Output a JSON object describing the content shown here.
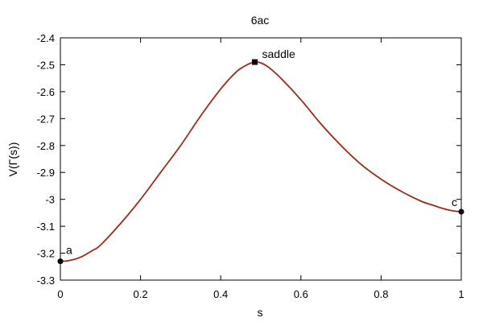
{
  "chart_data": {
    "type": "line",
    "title": "6ac",
    "xlabel": "s",
    "ylabel": "V(Γ(s))",
    "xlim": [
      0,
      1
    ],
    "ylim": [
      -3.3,
      -2.4
    ],
    "x_ticks": [
      "0",
      "0.2",
      "0.4",
      "0.6",
      "0.8",
      "1"
    ],
    "y_ticks": [
      "-2.4",
      "-2.5",
      "-2.6",
      "-2.7",
      "-2.8",
      "-2.9",
      "-3",
      "-3.1",
      "-3.2",
      "-3.3"
    ],
    "grid": false,
    "series": [
      {
        "color": "#9b2a1a",
        "x": [
          0,
          0.02,
          0.05,
          0.08,
          0.1,
          0.15,
          0.2,
          0.25,
          0.3,
          0.35,
          0.4,
          0.44,
          0.47,
          0.485,
          0.5,
          0.52,
          0.55,
          0.6,
          0.65,
          0.7,
          0.75,
          0.8,
          0.85,
          0.9,
          0.93,
          0.95,
          0.97,
          0.985,
          1
        ],
        "y": [
          -3.23,
          -3.228,
          -3.215,
          -3.19,
          -3.17,
          -3.09,
          -3.0,
          -2.9,
          -2.8,
          -2.69,
          -2.59,
          -2.525,
          -2.497,
          -2.49,
          -2.493,
          -2.51,
          -2.55,
          -2.63,
          -2.72,
          -2.8,
          -2.87,
          -2.925,
          -2.97,
          -3.007,
          -3.022,
          -3.032,
          -3.04,
          -3.044,
          -3.046
        ]
      }
    ],
    "annotations": [
      {
        "label": "a",
        "x": 0,
        "y": -3.23,
        "marker": "circle"
      },
      {
        "label": "saddle",
        "x": 0.485,
        "y": -2.49,
        "marker": "square"
      },
      {
        "label": "c",
        "x": 1,
        "y": -3.046,
        "marker": "circle"
      }
    ]
  }
}
